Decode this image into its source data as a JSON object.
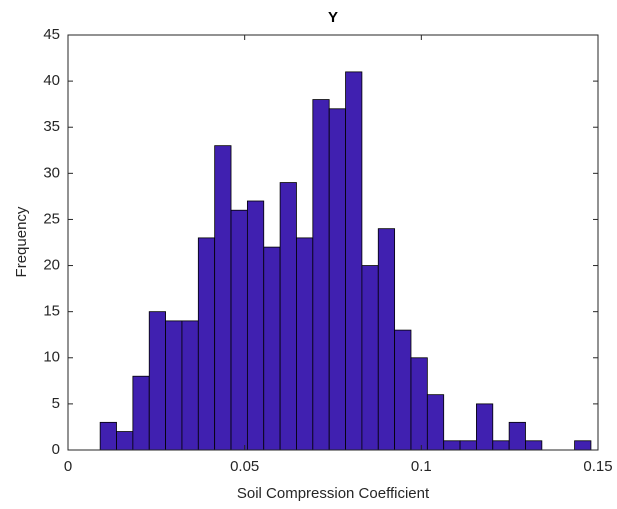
{
  "chart_data": {
    "type": "histogram",
    "title": "Y",
    "x_label": "Soil Compression Coefficient",
    "y_label": "Frequency",
    "bins": [
      0.0091,
      0.01373,
      0.01836,
      0.02299,
      0.02762,
      0.03225,
      0.03688,
      0.04151,
      0.04614,
      0.05077,
      0.0554,
      0.06003,
      0.06466,
      0.06929,
      0.07392,
      0.07855,
      0.08318,
      0.08781,
      0.09244,
      0.09707,
      0.1017,
      0.10633,
      0.11096,
      0.11559,
      0.12022,
      0.12485,
      0.12948,
      0.13411,
      0.13874,
      0.14337,
      0.148
    ],
    "counts": [
      3,
      2,
      8,
      15,
      14,
      14,
      23,
      33,
      26,
      27,
      22,
      29,
      23,
      38,
      37,
      41,
      20,
      24,
      13,
      10,
      6,
      1,
      1,
      5,
      1,
      3,
      1,
      0,
      0,
      1
    ],
    "color": "#4020b0",
    "edge_color": "#000000",
    "xlim": [
      0,
      0.15
    ],
    "xticks": [
      0,
      0.05,
      0.1,
      0.15
    ],
    "ylim": [
      0,
      45
    ],
    "yticks": [
      0,
      5,
      10,
      15,
      20,
      25,
      30,
      35,
      40,
      45
    ],
    "grid": false
  }
}
